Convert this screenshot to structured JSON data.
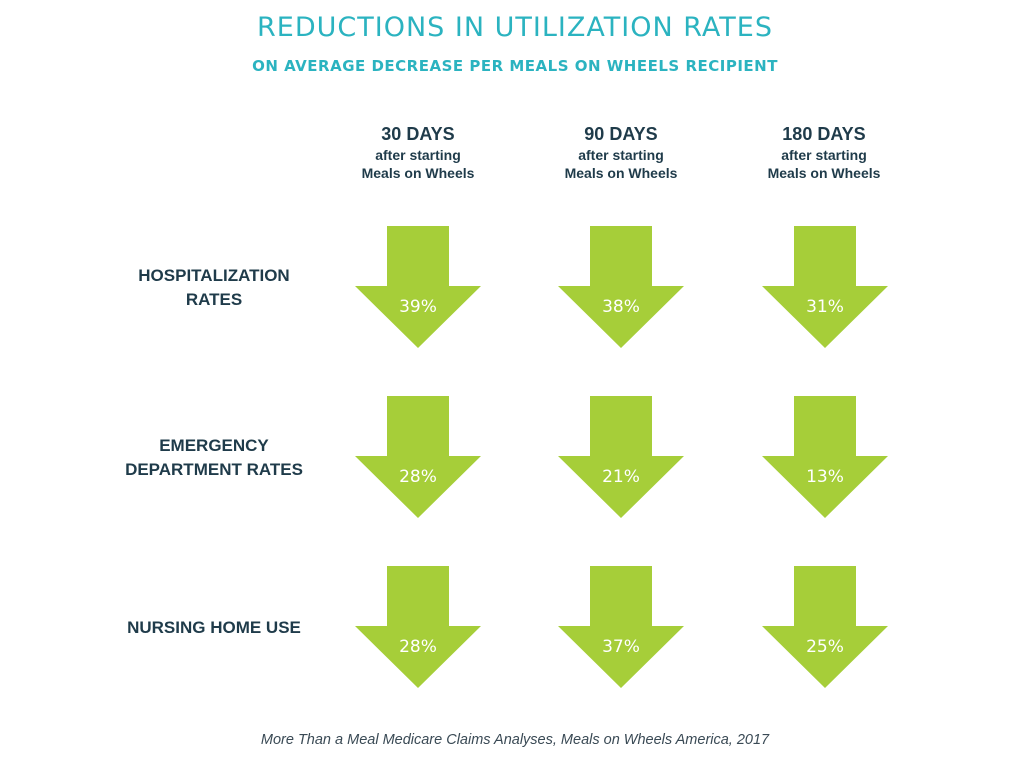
{
  "title": "REDUCTIONS IN UTILIZATION RATES",
  "subtitle": "ON AVERAGE DECREASE PER MEALS ON WHEELS RECIPIENT",
  "columns": [
    {
      "days": "30 DAYS",
      "line1": "after starting",
      "line2": "Meals on Wheels"
    },
    {
      "days": "90 DAYS",
      "line1": "after starting",
      "line2": "Meals on Wheels"
    },
    {
      "days": "180 DAYS",
      "line1": "after starting",
      "line2": "Meals on Wheels"
    }
  ],
  "rows": [
    {
      "line1": "HOSPITALIZATION",
      "line2": "RATES"
    },
    {
      "line1": "EMERGENCY",
      "line2": "DEPARTMENT RATES"
    },
    {
      "line1": "NURSING HOME USE",
      "line2": ""
    }
  ],
  "source": "More Than a Meal Medicare Claims Analyses, Meals on Wheels America, 2017",
  "colors": {
    "arrow": "#a6ce39",
    "title": "#2bb3c0",
    "label": "#1f3b4a"
  },
  "chart_data": {
    "type": "table",
    "categories": [
      "30 DAYS",
      "90 DAYS",
      "180 DAYS"
    ],
    "series": [
      {
        "name": "HOSPITALIZATION RATES",
        "values": [
          39,
          38,
          31
        ],
        "labels": [
          "39%",
          "38%",
          "31%"
        ]
      },
      {
        "name": "EMERGENCY DEPARTMENT RATES",
        "values": [
          28,
          21,
          13
        ],
        "labels": [
          "28%",
          "21%",
          "13%"
        ]
      },
      {
        "name": "NURSING HOME USE",
        "values": [
          28,
          37,
          25
        ],
        "labels": [
          "28%",
          "37%",
          "25%"
        ]
      }
    ],
    "unit": "%"
  }
}
